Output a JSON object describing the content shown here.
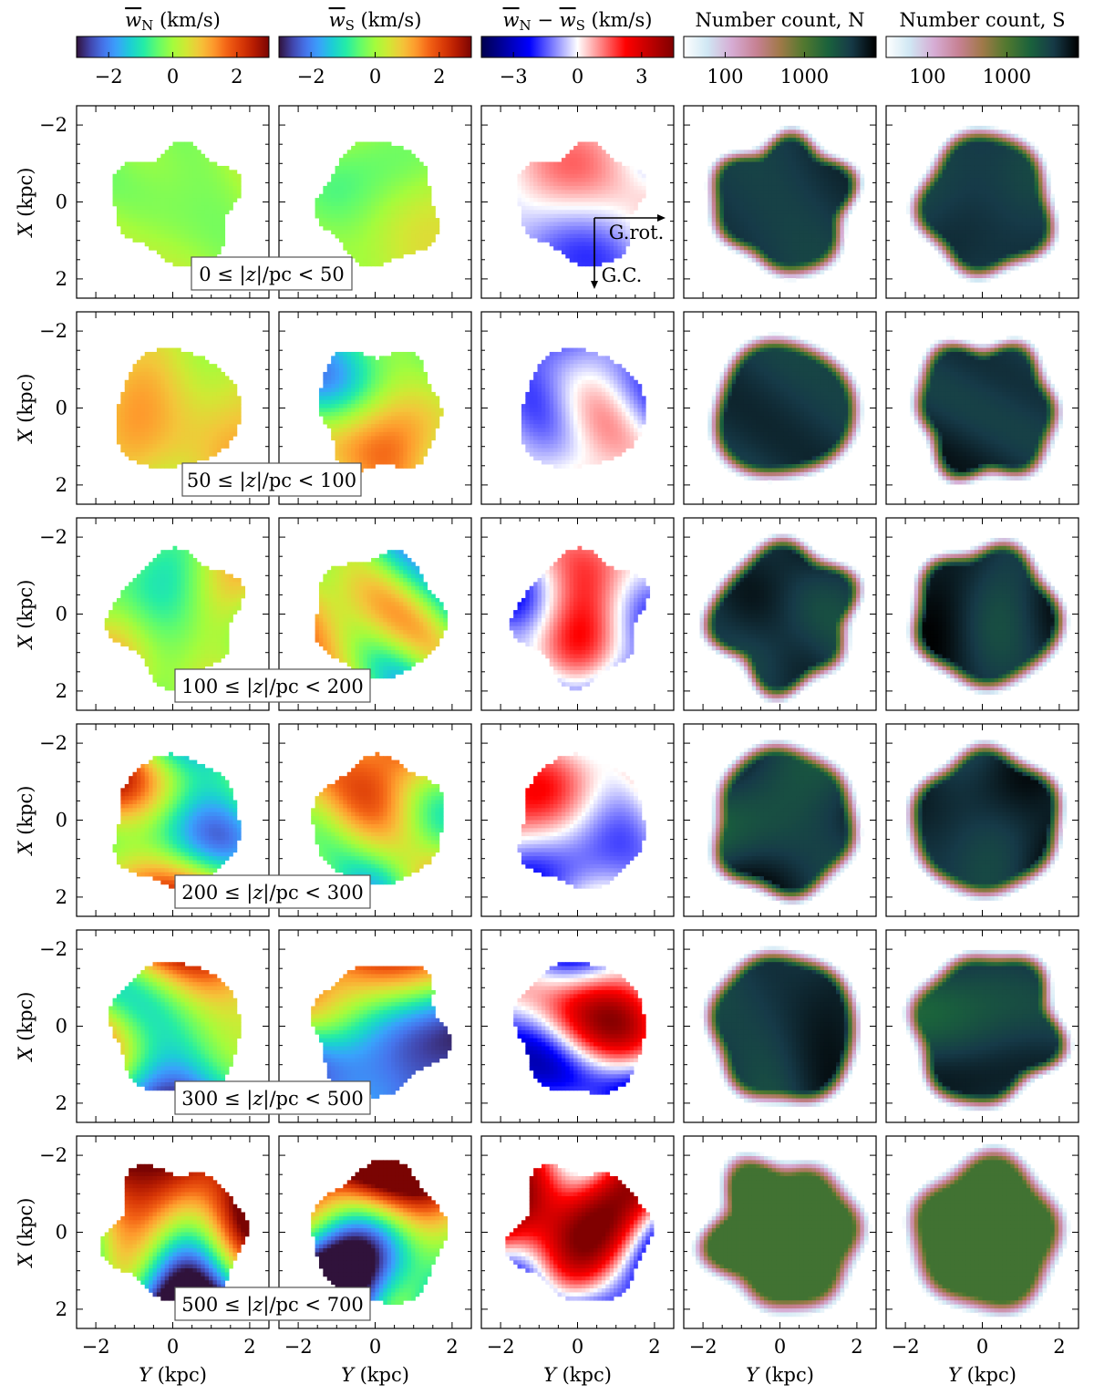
{
  "chart_data": {
    "type": "heatmap",
    "columns": [
      {
        "key": "wN",
        "title_main": "w",
        "title_sub": "N",
        "title_unit": " (km/s)",
        "colormap": "turbo",
        "ticks": [
          -2,
          0,
          2
        ],
        "tick_labels": [
          "−2",
          "0",
          "2"
        ],
        "range": [
          -3,
          3
        ]
      },
      {
        "key": "wS",
        "title_main": "w",
        "title_sub": "S",
        "title_unit": " (km/s)",
        "colormap": "turbo",
        "ticks": [
          -2,
          0,
          2
        ],
        "tick_labels": [
          "−2",
          "0",
          "2"
        ],
        "range": [
          -3,
          3
        ]
      },
      {
        "key": "diff",
        "title_main": "w",
        "title_sub": "N",
        "title_mid": " − ",
        "title_main2": "w",
        "title_sub2": "S",
        "title_unit": " (km/s)",
        "colormap": "seismic",
        "ticks": [
          -3,
          0,
          3
        ],
        "tick_labels": [
          "−3",
          "0",
          "3"
        ],
        "range": [
          -4.5,
          4.5
        ]
      },
      {
        "key": "countN",
        "title_main": "Number count, N",
        "colormap": "cubehelix-reversed",
        "scale": "log",
        "ticks": [
          100,
          1000
        ],
        "tick_labels": [
          "100",
          "1000"
        ],
        "range": [
          30,
          8000
        ]
      },
      {
        "key": "countS",
        "title_main": "Number count, S",
        "colormap": "cubehelix-reversed",
        "scale": "log",
        "ticks": [
          100,
          1000
        ],
        "tick_labels": [
          "100",
          "1000"
        ],
        "range": [
          30,
          8000
        ]
      }
    ],
    "rows": [
      {
        "label": "0 ≤ |z|/pc < 50"
      },
      {
        "label": "50 ≤ |z|/pc < 100"
      },
      {
        "label": "100 ≤ |z|/pc < 200"
      },
      {
        "label": "200 ≤ |z|/pc < 300"
      },
      {
        "label": "300 ≤ |z|/pc < 500"
      },
      {
        "label": "500 ≤ |z|/pc < 700"
      }
    ],
    "xlabel_main": "Y",
    "xlabel_unit": " (kpc)",
    "ylabel_main": "X",
    "ylabel_unit": " (kpc)",
    "xlim": [
      -2.5,
      2.5
    ],
    "ylim": [
      -2.5,
      2.5
    ],
    "y_inverted": true,
    "x_ticks": [
      -2,
      0,
      2
    ],
    "x_tick_labels": [
      "−2",
      "0",
      "2"
    ],
    "y_ticks": [
      -2,
      0,
      2
    ],
    "y_tick_labels": [
      "−2",
      "0",
      "2"
    ],
    "arrows": {
      "rotation_label": "G.rot.",
      "center_label": "G.C."
    }
  }
}
